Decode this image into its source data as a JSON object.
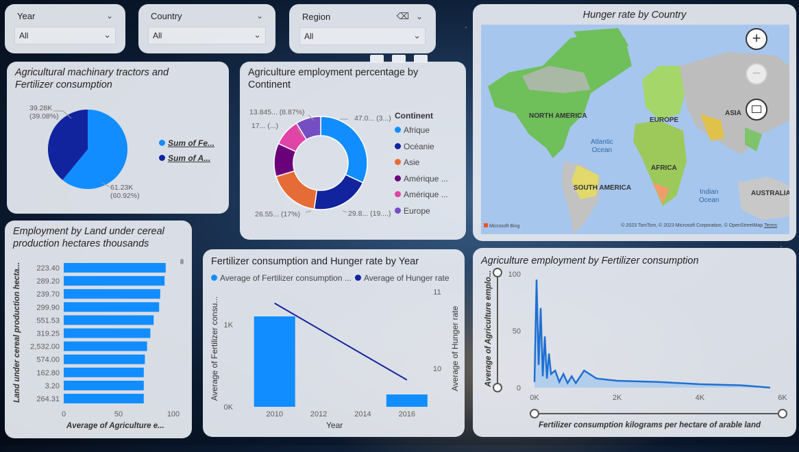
{
  "slicers": {
    "year": {
      "label": "Year",
      "value": "All"
    },
    "country": {
      "label": "Country",
      "value": "All"
    },
    "region": {
      "label": "Region",
      "value": "All"
    }
  },
  "colors": {
    "light_blue": "#118DFF",
    "dark_blue": "#12239E",
    "orange": "#E66C37",
    "purple": "#6B007B",
    "pink": "#E044A7",
    "violet": "#744EC2"
  },
  "tractors_pie": {
    "title_line1": "Agricultural machinary tractors and",
    "title_line2": "Fertilizer consumption",
    "label_dark": "39.28K",
    "label_dark_pct": "(39.08%)",
    "label_light": "61.23K",
    "label_light_pct": "(60.92%)",
    "legend": [
      "Sum of Fe...",
      "Sum of A..."
    ],
    "chart_data": {
      "type": "pie",
      "slices": [
        {
          "name": "Sum of Fe...",
          "value": 61.23,
          "pct": 60.92
        },
        {
          "name": "Sum of A...",
          "value": 39.28,
          "pct": 39.08
        }
      ]
    }
  },
  "continent_donut": {
    "title_line1": "Agriculture employment percentage by",
    "title_line2": "Continent",
    "legend_title": "Continent",
    "legend": [
      "Afrique",
      "Océanie",
      "Asie",
      "Amérique ...",
      "Amérique ...",
      "Europe"
    ],
    "labels": {
      "afrique": "47.0... (3...)",
      "oceanie": "29.8... (19....)",
      "asie": "26.55... (17%)",
      "amerique1": "17... (...)",
      "amerique2": "13.845... (8.87%)"
    }
  },
  "map": {
    "title": "Hunger rate by Country",
    "labels": {
      "north_america": "NORTH AMERICA",
      "europe": "EUROPE",
      "asia": "ASIA",
      "africa": "AFRICA",
      "south_america": "SOUTH AMERICA",
      "australia": "AUSTRALIA",
      "atlantic": "Atlantic",
      "atlantic2": "Ocean",
      "indian": "Indian",
      "indian2": "Ocean"
    },
    "copyright": "© 2023 TomTom, © 2023 Microsoft Corporation, © OpenStreetMap",
    "terms": "Terms",
    "bing": "Microsoft Bing"
  },
  "land_bar": {
    "title_line1": "Employment by Land under cereal",
    "title_line2": "production hectares thousands",
    "ylabel": "Land under cereal production hecta...",
    "xlabel": "Average of Agriculture e...",
    "ticks": [
      "0",
      "50",
      "100"
    ],
    "chart_data": {
      "type": "bar",
      "orientation": "horizontal",
      "categories": [
        "223.40",
        "289.20",
        "239.70",
        "299.90",
        "551.53",
        "319.25",
        "2,532.00",
        "574.00",
        "162.80",
        "3.20",
        "264.31"
      ],
      "values": [
        93,
        92,
        88,
        87,
        82,
        79,
        76,
        74,
        73,
        73,
        73
      ],
      "xlim": [
        0,
        100
      ]
    }
  },
  "fert_hunger": {
    "title": "Fertilizer consumption and Hunger rate by Year",
    "legend": [
      "Average of Fertilizer consumption ...",
      "Average of Hunger rate"
    ],
    "ylabel_left": "Average of Fertilizer consu...",
    "ylabel_right": "Average of Hunger rate",
    "xlabel": "Year",
    "left_ticks": [
      "1K",
      "0K"
    ],
    "right_ticks": [
      "11",
      "10"
    ],
    "x_ticks": [
      "2010",
      "2012",
      "2014",
      "2016"
    ],
    "chart_data": {
      "type": "bar",
      "x": [
        2010,
        2016
      ],
      "series": [
        {
          "name": "Average of Fertilizer consumption ...",
          "type": "bar",
          "values": [
            1100,
            150
          ]
        },
        {
          "name": "Average of Hunger rate",
          "type": "line",
          "values": [
            10.85,
            9.85
          ]
        }
      ],
      "ylim_left": [
        0,
        1400
      ],
      "ylim_right": [
        9.5,
        11
      ]
    }
  },
  "employment_area": {
    "title": "Agriculture employment by Fertilizer consumption",
    "ylabel": "Average of Agriculture emplo...",
    "xlabel": "Fertilizer consumption kilograms per hectare of arable land",
    "y_ticks": [
      "100",
      "50",
      "0"
    ],
    "x_ticks": [
      "0K",
      "2K",
      "4K",
      "6K"
    ],
    "chart_data": {
      "type": "area",
      "x": [
        0,
        50,
        100,
        150,
        200,
        250,
        300,
        350,
        400,
        500,
        600,
        700,
        800,
        900,
        1000,
        1200,
        1500,
        2000,
        3000,
        4000,
        5000,
        5700
      ],
      "y": [
        5,
        95,
        20,
        70,
        10,
        45,
        8,
        30,
        12,
        15,
        5,
        12,
        4,
        10,
        4,
        15,
        8,
        6,
        5,
        3,
        2,
        0
      ],
      "xlim": [
        0,
        6000
      ],
      "ylim": [
        0,
        100
      ]
    }
  }
}
